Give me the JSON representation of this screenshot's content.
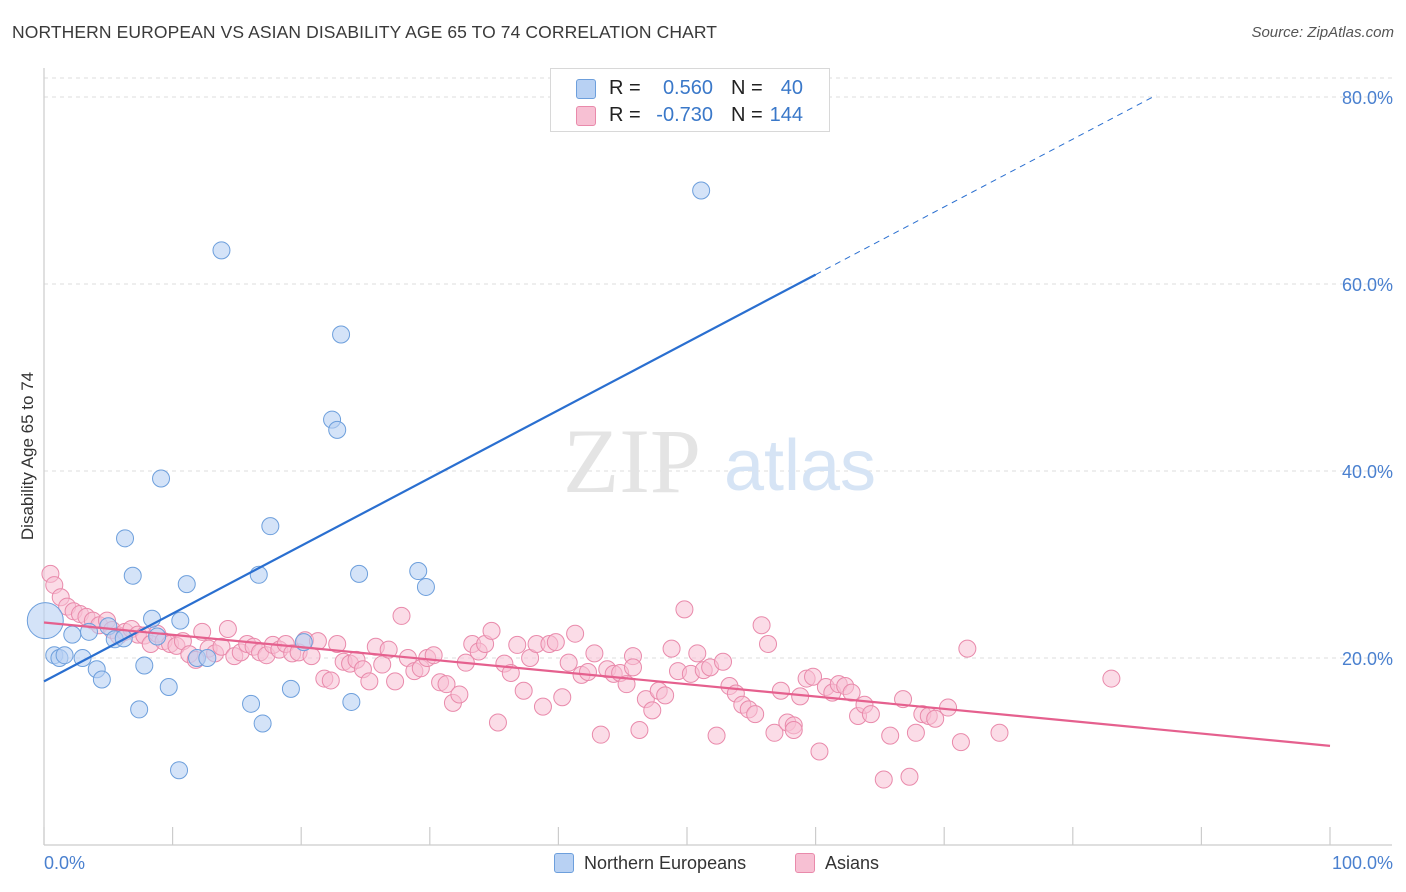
{
  "header": {
    "title": "NORTHERN EUROPEAN VS ASIAN DISABILITY AGE 65 TO 74 CORRELATION CHART",
    "source": "Source: ZipAtlas.com"
  },
  "watermark": {
    "zip": "ZIP",
    "atlas": "atlas"
  },
  "legend": {
    "rows": [
      {
        "r_label": "R =",
        "r_value": "0.560",
        "n_label": "N =",
        "n_value": "40"
      },
      {
        "r_label": "R =",
        "r_value": "-0.730",
        "n_label": "N =",
        "n_value": "144"
      }
    ]
  },
  "colors": {
    "blue_fill": "#b8d1f3",
    "blue_stroke": "#6d9fdc",
    "blue_line": "#2a6fd0",
    "pink_fill": "#f7c0d3",
    "pink_stroke": "#e98aab",
    "pink_line": "#e5608e",
    "tick_text": "#4a80cf",
    "grid": "#dedede"
  },
  "chart_data": {
    "type": "scatter",
    "title": "NORTHERN EUROPEAN VS ASIAN DISABILITY AGE 65 TO 74 CORRELATION CHART",
    "xlabel": "",
    "ylabel": "Disability Age 65 to 74",
    "xlim": [
      0,
      100
    ],
    "ylim": [
      0,
      82
    ],
    "x_tick_labels": [
      "0.0%",
      "100.0%"
    ],
    "y_ticks": [
      20,
      40,
      60,
      80
    ],
    "y_tick_labels": [
      "20.0%",
      "40.0%",
      "60.0%",
      "80.0%"
    ],
    "grid": true,
    "legend_position": "top-center",
    "series": [
      {
        "name": "Northern Europeans",
        "r": 0.56,
        "n": 40,
        "trend": {
          "x0": 0,
          "y0": 17.5,
          "x1": 60,
          "y1": 61.0,
          "dash_to_x": 86.5,
          "dash_to_y": 80.2
        },
        "points": [
          [
            0.1,
            24.0
          ],
          [
            0.8,
            20.3
          ],
          [
            1.2,
            20.0
          ],
          [
            1.6,
            20.3
          ],
          [
            2.2,
            22.5
          ],
          [
            3.0,
            20.0
          ],
          [
            3.5,
            22.8
          ],
          [
            4.1,
            18.8
          ],
          [
            4.5,
            17.7
          ],
          [
            5.0,
            23.4
          ],
          [
            5.5,
            22.0
          ],
          [
            6.2,
            22.1
          ],
          [
            6.3,
            32.8
          ],
          [
            6.9,
            28.8
          ],
          [
            7.4,
            14.5
          ],
          [
            7.8,
            19.2
          ],
          [
            8.4,
            24.2
          ],
          [
            8.8,
            22.3
          ],
          [
            9.1,
            39.2
          ],
          [
            9.7,
            16.9
          ],
          [
            10.5,
            8.0
          ],
          [
            10.6,
            24.0
          ],
          [
            11.1,
            27.9
          ],
          [
            11.9,
            20.0
          ],
          [
            12.7,
            20.0
          ],
          [
            13.8,
            63.6
          ],
          [
            16.1,
            15.1
          ],
          [
            17.0,
            13.0
          ],
          [
            17.6,
            34.1
          ],
          [
            16.7,
            28.9
          ],
          [
            19.2,
            16.7
          ],
          [
            20.2,
            21.7
          ],
          [
            22.4,
            45.5
          ],
          [
            22.8,
            44.4
          ],
          [
            23.1,
            54.6
          ],
          [
            23.9,
            15.3
          ],
          [
            29.1,
            29.3
          ],
          [
            29.7,
            27.6
          ],
          [
            51.1,
            70.0
          ],
          [
            24.5,
            29.0
          ]
        ]
      },
      {
        "name": "Asians",
        "r": -0.73,
        "n": 144,
        "trend": {
          "x0": 0,
          "y0": 23.8,
          "x1": 100,
          "y1": 10.6
        },
        "points": [
          [
            0.5,
            29.0
          ],
          [
            0.8,
            27.8
          ],
          [
            1.3,
            26.5
          ],
          [
            1.8,
            25.5
          ],
          [
            2.3,
            25.0
          ],
          [
            2.8,
            24.7
          ],
          [
            3.3,
            24.4
          ],
          [
            3.8,
            24.0
          ],
          [
            4.3,
            23.5
          ],
          [
            4.9,
            24.0
          ],
          [
            5.3,
            23.0
          ],
          [
            5.8,
            22.4
          ],
          [
            6.3,
            22.8
          ],
          [
            6.8,
            23.1
          ],
          [
            7.3,
            22.5
          ],
          [
            7.8,
            22.4
          ],
          [
            8.3,
            21.5
          ],
          [
            8.8,
            22.6
          ],
          [
            9.3,
            21.8
          ],
          [
            9.8,
            21.5
          ],
          [
            10.3,
            21.3
          ],
          [
            10.8,
            21.8
          ],
          [
            11.3,
            20.4
          ],
          [
            11.8,
            19.8
          ],
          [
            12.3,
            22.8
          ],
          [
            12.8,
            21.0
          ],
          [
            13.3,
            20.5
          ],
          [
            13.8,
            21.2
          ],
          [
            14.3,
            23.1
          ],
          [
            14.8,
            20.2
          ],
          [
            15.3,
            20.6
          ],
          [
            15.8,
            21.5
          ],
          [
            16.3,
            21.2
          ],
          [
            16.8,
            20.6
          ],
          [
            17.3,
            20.3
          ],
          [
            17.8,
            21.4
          ],
          [
            18.3,
            20.9
          ],
          [
            18.8,
            21.5
          ],
          [
            19.3,
            20.5
          ],
          [
            19.8,
            20.6
          ],
          [
            20.3,
            21.9
          ],
          [
            20.8,
            20.2
          ],
          [
            21.3,
            21.8
          ],
          [
            21.8,
            17.8
          ],
          [
            22.3,
            17.6
          ],
          [
            22.8,
            21.5
          ],
          [
            23.3,
            19.6
          ],
          [
            23.8,
            19.4
          ],
          [
            24.3,
            19.8
          ],
          [
            24.8,
            18.8
          ],
          [
            25.3,
            17.5
          ],
          [
            25.8,
            21.2
          ],
          [
            26.3,
            19.3
          ],
          [
            26.8,
            20.9
          ],
          [
            27.3,
            17.5
          ],
          [
            27.8,
            24.5
          ],
          [
            28.3,
            20.0
          ],
          [
            28.8,
            18.6
          ],
          [
            29.3,
            18.9
          ],
          [
            29.8,
            20.0
          ],
          [
            30.3,
            20.3
          ],
          [
            30.8,
            17.4
          ],
          [
            31.3,
            17.2
          ],
          [
            31.8,
            15.2
          ],
          [
            32.3,
            16.1
          ],
          [
            32.8,
            19.5
          ],
          [
            33.3,
            21.5
          ],
          [
            33.8,
            20.7
          ],
          [
            34.3,
            21.5
          ],
          [
            34.8,
            22.9
          ],
          [
            35.3,
            13.1
          ],
          [
            35.8,
            19.4
          ],
          [
            36.3,
            18.4
          ],
          [
            36.8,
            21.4
          ],
          [
            37.3,
            16.5
          ],
          [
            37.8,
            20.0
          ],
          [
            38.3,
            21.5
          ],
          [
            38.8,
            14.8
          ],
          [
            39.3,
            21.5
          ],
          [
            39.8,
            21.7
          ],
          [
            40.3,
            15.8
          ],
          [
            40.8,
            19.5
          ],
          [
            41.3,
            22.6
          ],
          [
            41.8,
            18.2
          ],
          [
            42.3,
            18.5
          ],
          [
            42.8,
            20.5
          ],
          [
            43.3,
            11.8
          ],
          [
            43.8,
            18.8
          ],
          [
            44.3,
            18.3
          ],
          [
            44.8,
            18.4
          ],
          [
            45.3,
            17.2
          ],
          [
            45.8,
            20.2
          ],
          [
            46.3,
            12.3
          ],
          [
            46.8,
            15.6
          ],
          [
            47.3,
            14.4
          ],
          [
            47.8,
            16.5
          ],
          [
            48.3,
            16.0
          ],
          [
            48.8,
            21.0
          ],
          [
            49.3,
            18.6
          ],
          [
            49.8,
            25.2
          ],
          [
            50.3,
            18.3
          ],
          [
            50.8,
            20.5
          ],
          [
            51.3,
            18.7
          ],
          [
            51.8,
            19.0
          ],
          [
            52.3,
            11.7
          ],
          [
            52.8,
            19.6
          ],
          [
            53.3,
            17.0
          ],
          [
            53.8,
            16.2
          ],
          [
            54.3,
            15.0
          ],
          [
            54.8,
            14.5
          ],
          [
            55.3,
            14.0
          ],
          [
            55.8,
            23.5
          ],
          [
            56.3,
            21.5
          ],
          [
            56.8,
            12.0
          ],
          [
            57.3,
            16.5
          ],
          [
            57.8,
            13.1
          ],
          [
            58.3,
            12.8
          ],
          [
            58.8,
            15.9
          ],
          [
            59.3,
            17.8
          ],
          [
            59.8,
            18.0
          ],
          [
            60.3,
            10.0
          ],
          [
            60.8,
            16.9
          ],
          [
            61.3,
            16.3
          ],
          [
            61.8,
            17.2
          ],
          [
            62.3,
            17.0
          ],
          [
            62.8,
            16.3
          ],
          [
            63.3,
            13.8
          ],
          [
            63.8,
            15.0
          ],
          [
            64.3,
            14.0
          ],
          [
            65.3,
            7.0
          ],
          [
            65.8,
            11.7
          ],
          [
            66.8,
            15.6
          ],
          [
            67.3,
            7.3
          ],
          [
            67.8,
            12.0
          ],
          [
            68.3,
            14.0
          ],
          [
            68.8,
            13.8
          ],
          [
            69.3,
            13.5
          ],
          [
            70.3,
            14.7
          ],
          [
            71.3,
            11.0
          ],
          [
            71.8,
            21.0
          ],
          [
            74.3,
            12.0
          ],
          [
            83.0,
            17.8
          ],
          [
            58.3,
            12.3
          ],
          [
            45.8,
            19.0
          ]
        ]
      }
    ]
  }
}
